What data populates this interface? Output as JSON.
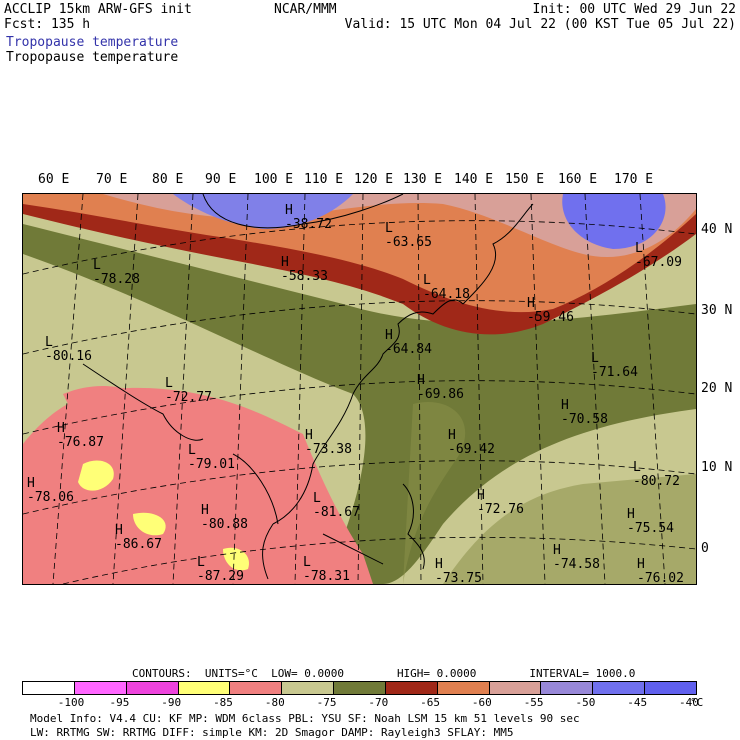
{
  "header": {
    "model": "ACCLIP 15km ARW-GFS init",
    "org": "NCAR/MMM",
    "init": "Init: 00 UTC Wed 29 Jun 22",
    "fcst": "Fcst:  135 h",
    "valid": "Valid: 15 UTC Mon 04 Jul 22 (00 KST Tue 05 Jul 22)",
    "field_blue": "Tropopause temperature",
    "field_black": "Tropopause temperature"
  },
  "lon_labels": [
    "60 E",
    "70 E",
    "80 E",
    "90 E",
    "100 E",
    "110 E",
    "120 E",
    "130 E",
    "140 E",
    "150 E",
    "160 E",
    "170 E"
  ],
  "lat_labels": [
    "40 N",
    "30 N",
    "20 N",
    "10 N",
    "0"
  ],
  "map_labels": [
    {
      "type": "H",
      "value": "-38.72"
    },
    {
      "type": "L",
      "value": "-63.65"
    },
    {
      "type": "L",
      "value": "-67.09"
    },
    {
      "type": "L",
      "value": "-78.28"
    },
    {
      "type": "H",
      "value": "-58.33"
    },
    {
      "type": "L",
      "value": "-64.18"
    },
    {
      "type": "H",
      "value": "-59.46"
    },
    {
      "type": "L",
      "value": "-80.16"
    },
    {
      "type": "H",
      "value": "-64.84"
    },
    {
      "type": "L",
      "value": "-71.64"
    },
    {
      "type": "L",
      "value": "-72.77"
    },
    {
      "type": "H",
      "value": "-69.86"
    },
    {
      "type": "H",
      "value": "-70.58"
    },
    {
      "type": "H",
      "value": "-76.87"
    },
    {
      "type": "H",
      "value": "-73.38"
    },
    {
      "type": "H",
      "value": "-69.42"
    },
    {
      "type": "L",
      "value": "-79.01"
    },
    {
      "type": "L",
      "value": "-80.72"
    },
    {
      "type": "H",
      "value": "-78.06"
    },
    {
      "type": "H",
      "value": "-72.76"
    },
    {
      "type": "H",
      "value": "-80.88"
    },
    {
      "type": "L",
      "value": "-81.67"
    },
    {
      "type": "H",
      "value": "-75.54"
    },
    {
      "type": "H",
      "value": "-86.67"
    },
    {
      "type": "H",
      "value": "-74.58"
    },
    {
      "type": "L",
      "value": "-87.29"
    },
    {
      "type": "L",
      "value": "-78.31"
    },
    {
      "type": "H",
      "value": "-73.75"
    },
    {
      "type": "H",
      "value": "-76.02"
    }
  ],
  "contours": {
    "label": "CONTOURS:",
    "units": "UNITS=°C",
    "low": "LOW=  0.0000",
    "high": "HIGH=  0.0000",
    "interval": "INTERVAL=    1000.0"
  },
  "colorbar": {
    "colors": [
      "#ffffff",
      "#ff66ff",
      "#ee44dd",
      "#ffff77",
      "#f08080",
      "#c8c890",
      "#707a38",
      "#a02818",
      "#e08050",
      "#d8a098",
      "#9888d8",
      "#7070ee",
      "#6060ee"
    ],
    "labels": [
      "-100",
      "-95",
      "-90",
      "-85",
      "-80",
      "-75",
      "-70",
      "-65",
      "-60",
      "-55",
      "-50",
      "-45",
      "-40"
    ],
    "unit": "°C"
  },
  "footer": {
    "line1": "Model Info: V4.4     CU: KF        MP: WDM 6class  PBL: YSU       SF: Noah LSM     15 km    51 levels   90 sec",
    "line2": "            LW: RRTMG   SW: RRTMG   DIFF: simple KM: 2D Smagor DAMP: Rayleigh3  SFLAY: MM5"
  }
}
